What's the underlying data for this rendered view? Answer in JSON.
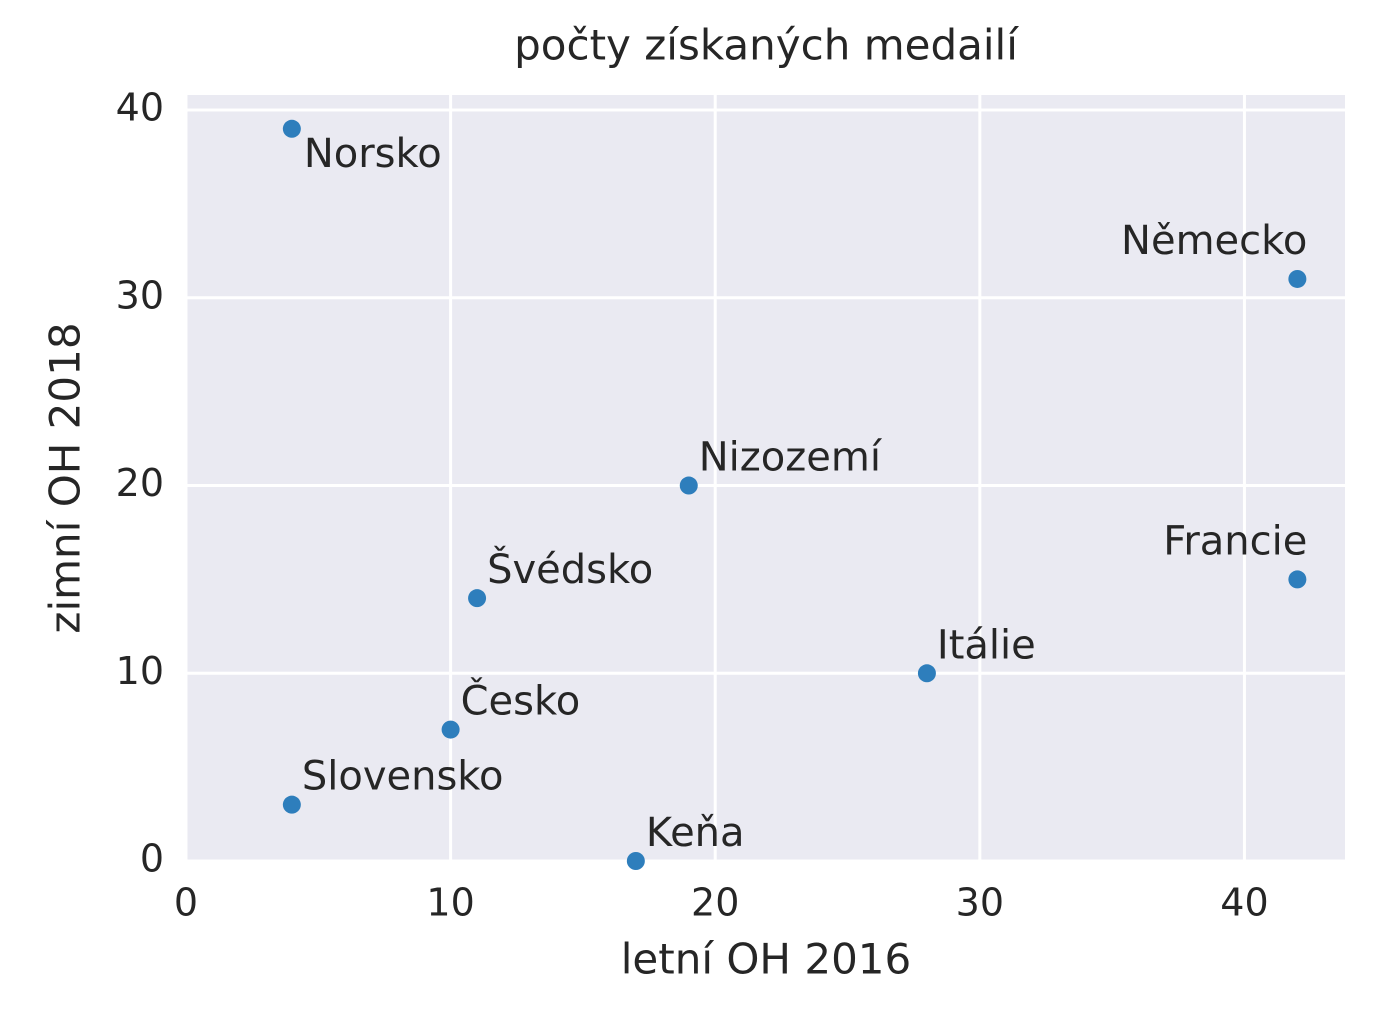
{
  "chart_data": {
    "type": "scatter",
    "title": "počty získaných medailí",
    "x_label": "letní OH 2016",
    "y_label": "zimní OH 2018",
    "point_labels": [
      "Norsko",
      "Německo",
      "Nizozemí",
      "Francie",
      "Švédsko",
      "Itálie",
      "Česko",
      "Slovensko",
      "Keňa"
    ],
    "x": [
      4,
      42,
      19,
      42,
      11,
      28,
      10,
      4,
      17
    ],
    "values": [
      39,
      31,
      20,
      15,
      14,
      10,
      7,
      3,
      0
    ],
    "color": "#2e7ebc",
    "xlim": [
      0,
      43.8
    ],
    "ylim": [
      0,
      40.8
    ],
    "xticks": [
      0,
      10,
      20,
      30,
      40
    ],
    "yticks": [
      0,
      10,
      20,
      30,
      40
    ],
    "grid": true
  }
}
